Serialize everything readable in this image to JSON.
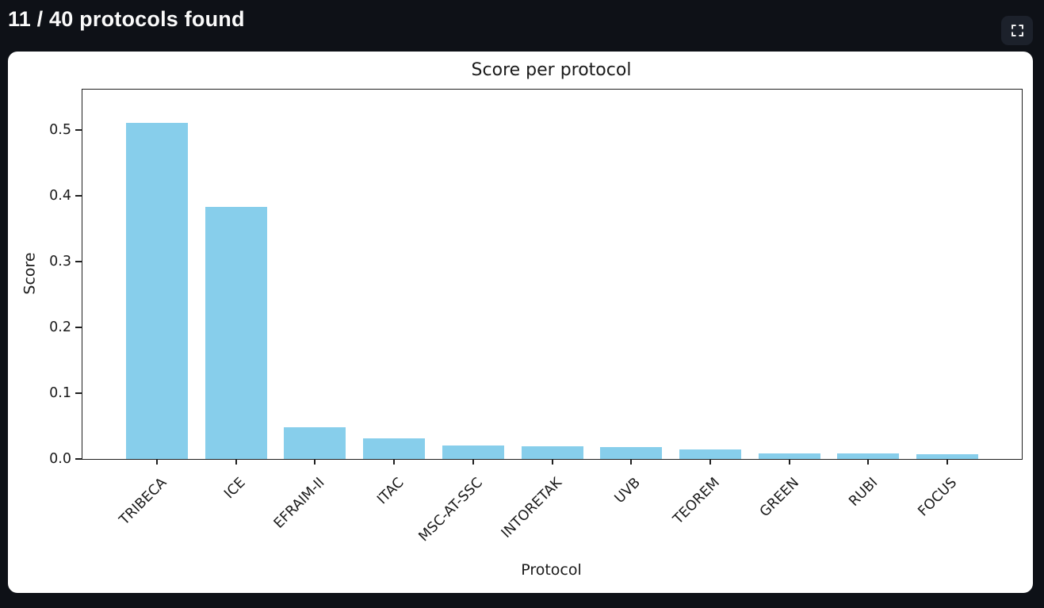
{
  "header": {
    "title": "11 / 40 protocols found"
  },
  "toolbar": {
    "icons": {
      "fullscreen": "expand-corners"
    }
  },
  "colors": {
    "background": "#0e1117",
    "header_text": "#fafafa",
    "card_background": "#ffffff",
    "bar_fill": "#87ceeb",
    "axis": "#1f1f1f",
    "fullscreen_button_background": "#1c212b"
  },
  "chart_data": {
    "type": "bar",
    "title": "Score per protocol",
    "xlabel": "Protocol",
    "ylabel": "Score",
    "categories": [
      "TRIBECA",
      "ICE",
      "EFRAIM-II",
      "ITAC",
      "MSC-AT-SSC",
      "INTORETAK",
      "UVB",
      "TEOREM",
      "GREEN",
      "RUBI",
      "FOCUS"
    ],
    "values": [
      0.51,
      0.383,
      0.048,
      0.031,
      0.02,
      0.019,
      0.018,
      0.015,
      0.009,
      0.008,
      0.007
    ],
    "ylim": [
      0,
      0.561
    ],
    "yticks": [
      0.0,
      0.1,
      0.2,
      0.3,
      0.4,
      0.5
    ],
    "ytick_labels": [
      "0.0",
      "0.1",
      "0.2",
      "0.3",
      "0.4",
      "0.5"
    ],
    "xtick_rotation_deg": 45,
    "grid": false,
    "legend": "none",
    "bar_color": "#87ceeb"
  }
}
